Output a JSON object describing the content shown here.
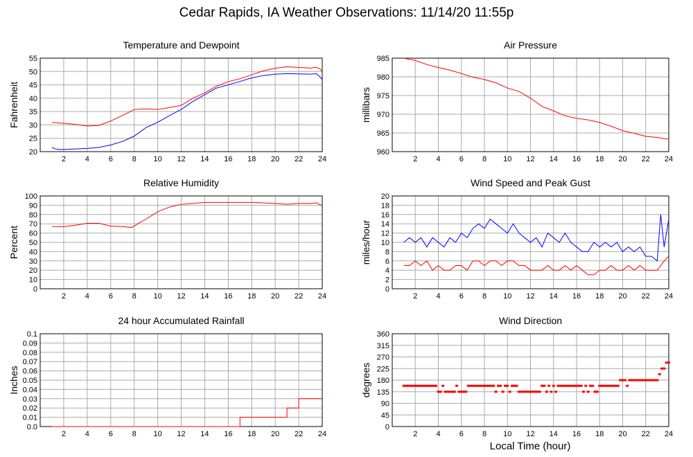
{
  "page_title": "Cedar Rapids, IA Weather Observations: 11/14/20 11:55p",
  "x_axis_label": "Local Time (hour)",
  "chart_data": [
    {
      "type": "line",
      "title": "Temperature and Dewpoint",
      "xlabel": "",
      "ylabel": "Fahrenheit",
      "xlim": [
        0,
        24
      ],
      "ylim": [
        20,
        55
      ],
      "xticks": [
        2,
        4,
        6,
        8,
        10,
        12,
        14,
        16,
        18,
        20,
        22,
        24
      ],
      "yticks": [
        20,
        25,
        30,
        35,
        40,
        45,
        50,
        55
      ],
      "grid": true,
      "series": [
        {
          "color": "#ff0000",
          "x": [
            1,
            2,
            3,
            4,
            5,
            6,
            7,
            8,
            9,
            10,
            11,
            12,
            13,
            14,
            15,
            16,
            17,
            18,
            19,
            20,
            21,
            22,
            23,
            23.5,
            23.8,
            24
          ],
          "values": [
            31,
            30.6,
            30.2,
            29.6,
            29.8,
            31.5,
            33.5,
            35.8,
            36,
            35.8,
            36.5,
            37.3,
            40,
            42,
            44.5,
            46.2,
            47.3,
            48.8,
            50.3,
            51.2,
            51.8,
            51.5,
            51.3,
            51.6,
            51,
            50
          ]
        },
        {
          "color": "#0000ff",
          "x": [
            1,
            1.5,
            2,
            3,
            4,
            5,
            6,
            7,
            8,
            9,
            10,
            11,
            12,
            13,
            14,
            15,
            16,
            17,
            18,
            19,
            20,
            21,
            22,
            23,
            23.5,
            23.8,
            24
          ],
          "values": [
            21.5,
            20.8,
            20.8,
            21,
            21.2,
            21.6,
            22.5,
            23.8,
            25.8,
            29,
            31,
            33.5,
            35.8,
            38.8,
            41.3,
            43.8,
            45,
            46.3,
            47.6,
            48.5,
            49,
            49.2,
            49.1,
            49,
            49.2,
            48,
            47
          ]
        }
      ]
    },
    {
      "type": "line",
      "title": "Air Pressure",
      "xlabel": "",
      "ylabel": "millibars",
      "xlim": [
        0,
        24
      ],
      "ylim": [
        960,
        985
      ],
      "xticks": [
        2,
        4,
        6,
        8,
        10,
        12,
        14,
        16,
        18,
        20,
        22,
        24
      ],
      "yticks": [
        960,
        965,
        970,
        975,
        980,
        985
      ],
      "grid": true,
      "series": [
        {
          "color": "#ff0000",
          "x": [
            1,
            2,
            3,
            4,
            5,
            6,
            7,
            8,
            9,
            10,
            11,
            12,
            13,
            14,
            15,
            16,
            17,
            18,
            19,
            20,
            21,
            22,
            23,
            24
          ],
          "values": [
            985,
            984.4,
            983.3,
            982.5,
            981.8,
            980.9,
            979.9,
            979.3,
            978.4,
            977,
            976.1,
            974.3,
            972.1,
            970.9,
            969.6,
            968.9,
            968.5,
            967.8,
            966.8,
            965.6,
            964.9,
            964.1,
            963.8,
            963.3
          ]
        }
      ]
    },
    {
      "type": "line",
      "title": "Relative Humidity",
      "xlabel": "",
      "ylabel": "Percent",
      "xlim": [
        0,
        24
      ],
      "ylim": [
        0,
        100
      ],
      "xticks": [
        2,
        4,
        6,
        8,
        10,
        12,
        14,
        16,
        18,
        20,
        22,
        24
      ],
      "yticks": [
        0,
        10,
        20,
        30,
        40,
        50,
        60,
        70,
        80,
        90,
        100
      ],
      "grid": true,
      "series": [
        {
          "color": "#ff0000",
          "x": [
            1,
            2,
            3,
            4,
            5,
            6,
            7,
            7.8,
            8.3,
            9,
            10,
            11,
            12,
            13,
            14,
            15,
            16,
            17,
            18,
            19,
            20,
            21,
            22,
            23,
            23.5,
            24
          ],
          "values": [
            67,
            67,
            68.5,
            70.5,
            70.5,
            67.5,
            67,
            66,
            70,
            75,
            83,
            88,
            91,
            92,
            93,
            93,
            93,
            93,
            93,
            92.5,
            92,
            91,
            92,
            92,
            92.5,
            89.5
          ]
        }
      ]
    },
    {
      "type": "line",
      "title": "Wind Speed and Peak Gust",
      "xlabel": "",
      "ylabel": "miles/hour",
      "xlim": [
        0,
        24
      ],
      "ylim": [
        0,
        20
      ],
      "xticks": [
        2,
        4,
        6,
        8,
        10,
        12,
        14,
        16,
        18,
        20,
        22,
        24
      ],
      "yticks": [
        0,
        2,
        4,
        6,
        8,
        10,
        12,
        14,
        16,
        18,
        20
      ],
      "grid": true,
      "series": [
        {
          "color": "#0000ff",
          "x": [
            1,
            1.5,
            2,
            2.5,
            3,
            3.5,
            4,
            4.5,
            5,
            5.5,
            6,
            6.5,
            7,
            7.5,
            8,
            8.5,
            9,
            9.5,
            10,
            10.5,
            11,
            11.5,
            12,
            12.5,
            13,
            13.5,
            14,
            14.5,
            15,
            15.5,
            16,
            16.5,
            17,
            17.5,
            18,
            18.5,
            19,
            19.5,
            20,
            20.5,
            21,
            21.5,
            22,
            22.5,
            23,
            23.3,
            23.6,
            24
          ],
          "values": [
            10,
            11,
            10,
            11,
            9,
            11,
            10,
            9,
            11,
            10,
            12,
            11,
            13,
            14,
            13,
            15,
            14,
            13,
            12,
            14,
            12,
            11,
            10,
            11,
            9,
            12,
            11,
            10,
            12,
            10,
            9,
            8,
            8,
            10,
            9,
            10,
            9,
            10,
            8,
            9,
            8,
            9,
            7,
            7,
            6,
            16,
            9,
            15
          ]
        },
        {
          "color": "#ff0000",
          "x": [
            1,
            1.5,
            2,
            2.5,
            3,
            3.5,
            4,
            4.5,
            5,
            5.5,
            6,
            6.5,
            7,
            7.5,
            8,
            8.5,
            9,
            9.5,
            10,
            10.5,
            11,
            11.5,
            12,
            12.5,
            13,
            13.5,
            14,
            14.5,
            15,
            15.5,
            16,
            16.5,
            17,
            17.5,
            18,
            18.5,
            19,
            19.5,
            20,
            20.5,
            21,
            21.5,
            22,
            22.5,
            23,
            23.3,
            23.6,
            24
          ],
          "values": [
            5,
            5,
            6,
            5,
            6,
            4,
            5,
            4,
            4,
            5,
            5,
            4,
            6,
            6,
            5,
            6,
            6,
            5,
            6,
            6,
            5,
            5,
            4,
            4,
            4,
            5,
            4,
            4,
            5,
            4,
            5,
            4,
            3,
            3,
            4,
            4,
            5,
            4,
            4,
            5,
            4,
            5,
            4,
            4,
            4,
            5,
            6,
            7
          ]
        }
      ]
    },
    {
      "type": "line",
      "title": "24 hour Accumulated Rainfall",
      "xlabel": "",
      "ylabel": "Inches",
      "xlim": [
        0,
        24
      ],
      "ylim": [
        0,
        0.1
      ],
      "xticks": [
        2,
        4,
        6,
        8,
        10,
        12,
        14,
        16,
        18,
        20,
        22,
        24
      ],
      "yticks": [
        0.0,
        0.01,
        0.02,
        0.03,
        0.04,
        0.05,
        0.06,
        0.07,
        0.08,
        0.09,
        0.1
      ],
      "ytick_labels": [
        "0.0",
        "0.01",
        "0.02",
        "0.03",
        "0.04",
        "0.05",
        "0.06",
        "0.07",
        "0.08",
        "0.09",
        "0.1"
      ],
      "grid": true,
      "series": [
        {
          "color": "#ff0000",
          "step": true,
          "x": [
            1,
            17,
            21,
            22,
            24
          ],
          "values": [
            0,
            0.01,
            0.02,
            0.03,
            0.03
          ]
        }
      ]
    },
    {
      "type": "scatter",
      "title": "Wind Direction",
      "xlabel": "Local Time (hour)",
      "ylabel": "degrees",
      "xlim": [
        0,
        24
      ],
      "ylim": [
        0,
        360
      ],
      "xticks": [
        2,
        4,
        6,
        8,
        10,
        12,
        14,
        16,
        18,
        20,
        22,
        24
      ],
      "yticks": [
        0,
        45,
        90,
        135,
        180,
        225,
        270,
        315,
        360
      ],
      "grid": true,
      "series": [
        {
          "color": "#ff0000",
          "x": [
            1,
            1.2,
            1.4,
            1.6,
            1.8,
            2,
            2.2,
            2.4,
            2.6,
            2.8,
            3,
            3.2,
            3.4,
            3.6,
            3.8,
            4,
            4.2,
            4.4,
            4.6,
            4.8,
            5,
            5.2,
            5.4,
            5.6,
            5.8,
            6,
            6.2,
            6.4,
            6.6,
            6.8,
            7,
            7.2,
            7.4,
            7.6,
            7.8,
            8,
            8.2,
            8.4,
            8.6,
            8.8,
            9,
            9.2,
            9.4,
            9.6,
            9.8,
            10,
            10.2,
            10.4,
            10.6,
            10.8,
            11,
            11.2,
            11.4,
            11.6,
            11.8,
            12,
            12.2,
            12.4,
            12.6,
            12.8,
            13,
            13.2,
            13.4,
            13.6,
            13.8,
            14,
            14.2,
            14.4,
            14.6,
            14.8,
            15,
            15.2,
            15.4,
            15.6,
            15.8,
            16,
            16.2,
            16.4,
            16.6,
            16.8,
            17,
            17.2,
            17.4,
            17.6,
            17.8,
            18,
            18.2,
            18.4,
            18.6,
            18.8,
            19,
            19.2,
            19.4,
            19.6,
            19.8,
            20,
            20.2,
            20.4,
            20.6,
            20.8,
            21,
            21.2,
            21.4,
            21.6,
            21.8,
            22,
            22.2,
            22.4,
            22.6,
            22.8,
            23,
            23.2,
            23.4,
            23.6,
            23.8,
            24
          ],
          "values": [
            158,
            158,
            158,
            158,
            158,
            158,
            158,
            158,
            158,
            158,
            158,
            158,
            158,
            158,
            158,
            135,
            135,
            158,
            135,
            135,
            135,
            135,
            135,
            158,
            135,
            135,
            135,
            135,
            158,
            158,
            158,
            158,
            158,
            158,
            158,
            158,
            158,
            158,
            158,
            158,
            135,
            158,
            158,
            135,
            158,
            158,
            135,
            158,
            158,
            158,
            135,
            135,
            135,
            135,
            135,
            135,
            135,
            135,
            135,
            135,
            158,
            158,
            135,
            158,
            135,
            158,
            135,
            158,
            158,
            158,
            158,
            158,
            158,
            158,
            158,
            158,
            158,
            158,
            135,
            158,
            135,
            158,
            158,
            135,
            135,
            158,
            158,
            158,
            158,
            158,
            158,
            158,
            158,
            158,
            180,
            180,
            180,
            158,
            180,
            180,
            180,
            180,
            180,
            180,
            180,
            180,
            180,
            180,
            180,
            180,
            180,
            203,
            225,
            225,
            248,
            248
          ]
        }
      ]
    }
  ]
}
